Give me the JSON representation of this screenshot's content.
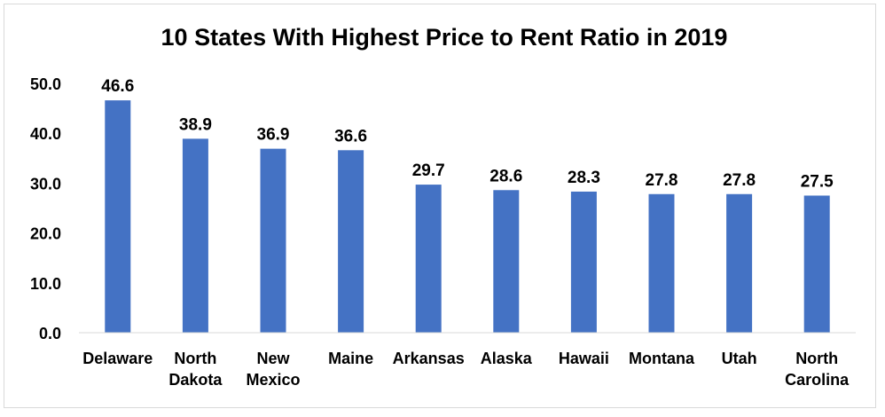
{
  "chart_data": {
    "type": "bar",
    "title": "10 States With Highest Price to Rent Ratio in 2019",
    "xlabel": "",
    "ylabel": "",
    "categories": [
      [
        "Delaware"
      ],
      [
        "North",
        "Dakota"
      ],
      [
        "New",
        "Mexico"
      ],
      [
        "Maine"
      ],
      [
        "Arkansas"
      ],
      [
        "Alaska"
      ],
      [
        "Hawaii"
      ],
      [
        "Montana"
      ],
      [
        "Utah"
      ],
      [
        "North",
        "Carolina"
      ]
    ],
    "values": [
      46.6,
      38.9,
      36.9,
      36.6,
      29.7,
      28.6,
      28.3,
      27.8,
      27.8,
      27.5
    ],
    "data_labels": [
      "46.6",
      "38.9",
      "36.9",
      "36.6",
      "29.7",
      "28.6",
      "28.3",
      "27.8",
      "27.8",
      "27.5"
    ],
    "y_ticks": [
      "0.0",
      "10.0",
      "20.0",
      "30.0",
      "40.0",
      "50.0"
    ],
    "ylim": [
      0,
      50
    ],
    "grid": false,
    "legend": "none",
    "bar_color": "#4472c4"
  }
}
